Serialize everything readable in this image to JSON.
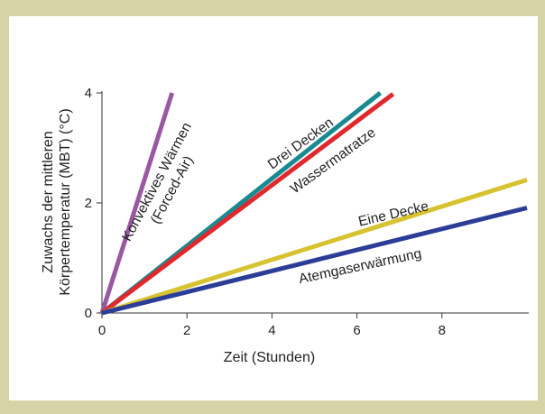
{
  "chart_data": {
    "type": "line",
    "xlabel": "Zeit (Stunden)",
    "ylabel": [
      "Zuwachs der mittleren",
      "Körpertemperatur (MBT) (°C)"
    ],
    "xlim": [
      0,
      10
    ],
    "ylim": [
      0,
      4
    ],
    "xticks": [
      0,
      2,
      4,
      6,
      8
    ],
    "yticks": [
      0,
      2,
      4
    ],
    "grid": false,
    "series": [
      {
        "name": "Konvektives Wärmen (Forced-Air)",
        "label_lines": [
          "Konvektives Wärmen",
          "(Forced-Air)"
        ],
        "color": "#9a58a2",
        "x": [
          0,
          1.65
        ],
        "y": [
          0,
          4.0
        ]
      },
      {
        "name": "Drei Decken",
        "label_lines": [
          "Drei Decken"
        ],
        "color": "#1a8a91",
        "x": [
          0,
          6.55
        ],
        "y": [
          0,
          4.0
        ]
      },
      {
        "name": "Wassermatratze",
        "label_lines": [
          "Wassermatratze"
        ],
        "color": "#e0282d",
        "x": [
          0,
          6.85
        ],
        "y": [
          0,
          3.98
        ]
      },
      {
        "name": "Eine Decke",
        "label_lines": [
          "Eine Decke"
        ],
        "color": "#d7c230",
        "x": [
          0,
          10.0
        ],
        "y": [
          0,
          2.42
        ]
      },
      {
        "name": "Atemgaserwärmung",
        "label_lines": [
          "Atemgaserwärmung"
        ],
        "color": "#2c3d97",
        "x": [
          0,
          10.0
        ],
        "y": [
          0,
          1.91
        ]
      }
    ]
  }
}
